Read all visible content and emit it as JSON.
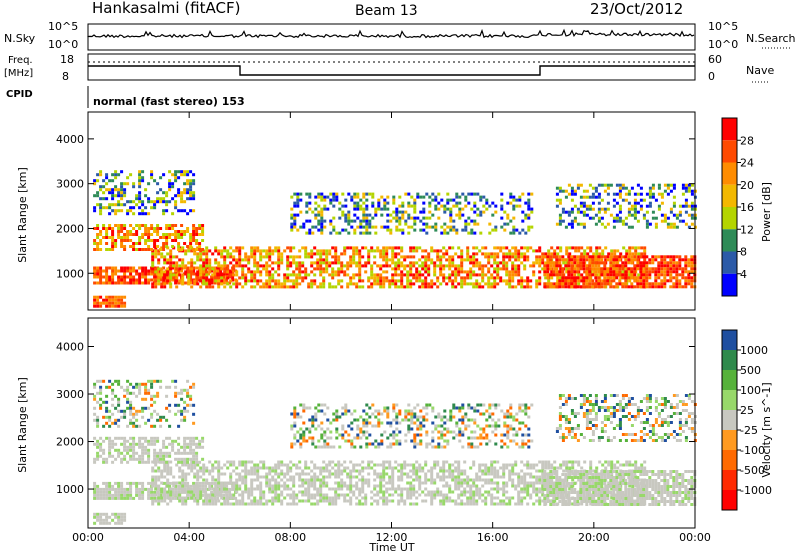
{
  "header": {
    "radar": "Hankasalmi (fitACF)",
    "beam": "Beam 13",
    "date": "23/Oct/2012"
  },
  "top_panel": {
    "nsky_label": "N.Sky",
    "nsky_ticks": [
      "10^5",
      "10^0"
    ],
    "nsearch_ticks": [
      "10^5",
      "10^0"
    ],
    "nsearch_label": "N.Search",
    "freq_label_line1": "Freq.",
    "freq_label_line2": "[MHz]",
    "freq_ticks": [
      "18",
      "8"
    ],
    "nave_ticks": [
      "60",
      "0"
    ],
    "nave_label": "Nave",
    "cpid_label": "CPID",
    "mode_text": "normal (fast stereo) 153"
  },
  "power_colorbar": {
    "label": "Power [dB]",
    "ticks": [
      "28",
      "24",
      "20",
      "16",
      "12",
      "8",
      "4"
    ],
    "colors": [
      "#ff0000",
      "#ff4a00",
      "#ff8c00",
      "#f3b800",
      "#b4d400",
      "#2e8b57",
      "#2b5aa8",
      "#0000ff"
    ]
  },
  "velocity_colorbar": {
    "label": "Velocity [m s^-1]",
    "ticks": [
      "1000",
      "500",
      "100",
      "25",
      "-25",
      "-100",
      "-500",
      "-1000"
    ],
    "colors": [
      "#1f4fa0",
      "#2f8a4c",
      "#56b23a",
      "#98d86a",
      "#c8c8c0",
      "#ff9a20",
      "#ff6a00",
      "#ff2a00",
      "#ff0000"
    ]
  },
  "chart_data": [
    {
      "type": "heatmap",
      "title": "Power",
      "xlabel": "Time UT",
      "ylabel": "Slant Range [km]",
      "x_ticks": [
        "00:00",
        "04:00",
        "08:00",
        "12:00",
        "16:00",
        "20:00",
        "00:00"
      ],
      "y_ticks": [
        "4000",
        "3000",
        "2000",
        "1000"
      ],
      "ylim": [
        180,
        4600
      ],
      "xlim_hours": [
        0,
        24
      ],
      "bands": [
        {
          "t0": 0.2,
          "t1": 5.8,
          "r0": 800,
          "r1": 1150,
          "level": "strong"
        },
        {
          "t0": 2.5,
          "t1": 22.0,
          "r0": 700,
          "r1": 1600,
          "level": "medium"
        },
        {
          "t0": 0.2,
          "t1": 4.5,
          "r0": 1550,
          "r1": 2100,
          "level": "medium"
        },
        {
          "t0": 0.2,
          "t1": 4.2,
          "r0": 2300,
          "r1": 3300,
          "level": "weak"
        },
        {
          "t0": 8.0,
          "t1": 17.5,
          "r0": 1900,
          "r1": 2800,
          "level": "weak"
        },
        {
          "t0": 18.0,
          "t1": 24.0,
          "r0": 700,
          "r1": 1400,
          "level": "strong"
        },
        {
          "t0": 18.5,
          "t1": 24.0,
          "r0": 2000,
          "r1": 3000,
          "level": "weak"
        },
        {
          "t0": 0.2,
          "t1": 1.5,
          "r0": 250,
          "r1": 500,
          "level": "strong"
        }
      ]
    },
    {
      "type": "heatmap",
      "title": "Velocity",
      "xlabel": "Time UT",
      "ylabel": "Slant Range [km]",
      "x_ticks": [
        "00:00",
        "04:00",
        "08:00",
        "12:00",
        "16:00",
        "20:00",
        "00:00"
      ],
      "y_ticks": [
        "4000",
        "3000",
        "2000",
        "1000"
      ],
      "ylim": [
        180,
        4600
      ],
      "xlim_hours": [
        0,
        24
      ]
    }
  ]
}
